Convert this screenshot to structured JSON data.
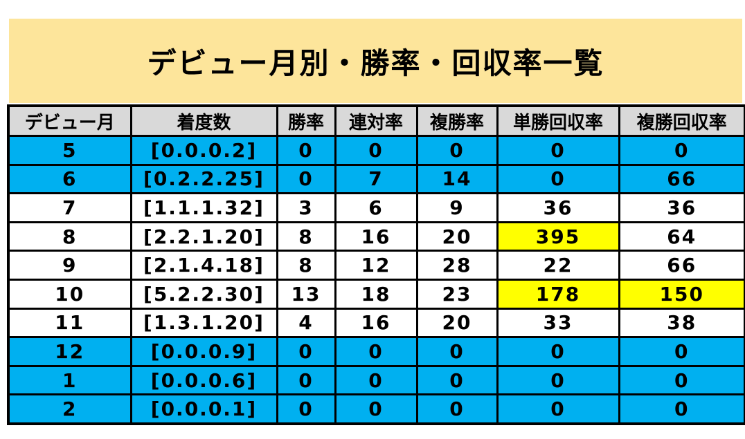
{
  "title": "デビュー月別・勝率・回収率一覧",
  "colors": {
    "banner_bg": "#fde59b",
    "header_bg": "#d9d9d9",
    "row_blue": "#00b0f0",
    "row_white": "#ffffff",
    "highlight": "#ffff00"
  },
  "columns": [
    "デビュー月",
    "着度数",
    "勝率",
    "連対率",
    "複勝率",
    "単勝回収率",
    "複勝回収率"
  ],
  "rows": [
    {
      "style": "blue",
      "cells": [
        "5",
        "[0.0.0.2]",
        "0",
        "0",
        "0",
        "0",
        "0"
      ],
      "highlight": []
    },
    {
      "style": "blue",
      "cells": [
        "6",
        "[0.2.2.25]",
        "0",
        "7",
        "14",
        "0",
        "66"
      ],
      "highlight": []
    },
    {
      "style": "white",
      "cells": [
        "7",
        "[1.1.1.32]",
        "3",
        "6",
        "9",
        "36",
        "36"
      ],
      "highlight": []
    },
    {
      "style": "white",
      "cells": [
        "8",
        "[2.2.1.20]",
        "8",
        "16",
        "20",
        "395",
        "64"
      ],
      "highlight": [
        5
      ]
    },
    {
      "style": "white",
      "cells": [
        "9",
        "[2.1.4.18]",
        "8",
        "12",
        "28",
        "22",
        "66"
      ],
      "highlight": []
    },
    {
      "style": "white",
      "cells": [
        "10",
        "[5.2.2.30]",
        "13",
        "18",
        "23",
        "178",
        "150"
      ],
      "highlight": [
        5,
        6
      ]
    },
    {
      "style": "white",
      "cells": [
        "11",
        "[1.3.1.20]",
        "4",
        "16",
        "20",
        "33",
        "38"
      ],
      "highlight": []
    },
    {
      "style": "blue",
      "cells": [
        "12",
        "[0.0.0.9]",
        "0",
        "0",
        "0",
        "0",
        "0"
      ],
      "highlight": []
    },
    {
      "style": "blue",
      "cells": [
        "1",
        "[0.0.0.6]",
        "0",
        "0",
        "0",
        "0",
        "0"
      ],
      "highlight": []
    },
    {
      "style": "blue",
      "cells": [
        "2",
        "[0.0.0.1]",
        "0",
        "0",
        "0",
        "0",
        "0"
      ],
      "highlight": []
    }
  ]
}
